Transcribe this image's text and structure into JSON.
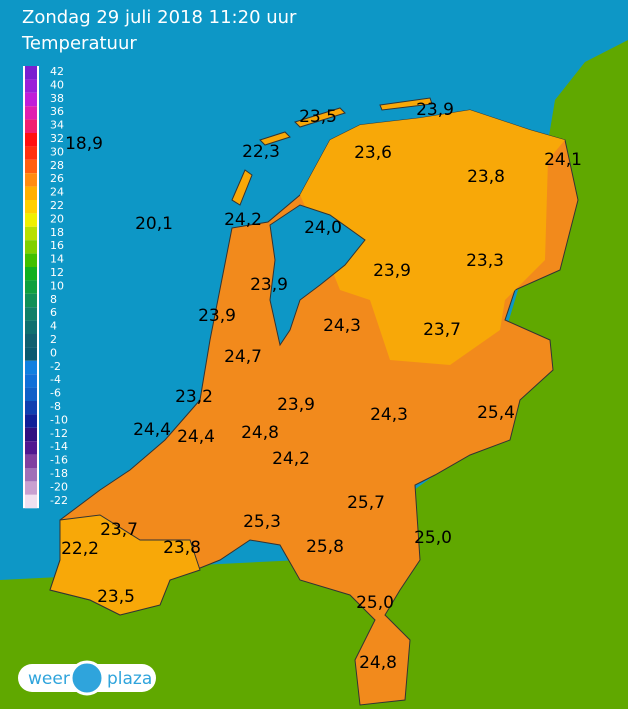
{
  "header": {
    "title": "Zondag 29 juli 2018 11:20 uur",
    "subtitle": "Temperatuur"
  },
  "legend": {
    "ticks": [
      42,
      40,
      38,
      36,
      34,
      32,
      30,
      28,
      26,
      24,
      22,
      20,
      18,
      16,
      14,
      12,
      10,
      8,
      6,
      4,
      2,
      0,
      -2,
      -4,
      -6,
      -8,
      -10,
      -12,
      -14,
      -16,
      -18,
      -20,
      -22
    ],
    "colors": [
      "#7a1fd0",
      "#9a1fd8",
      "#c01fd8",
      "#e01fb0",
      "#f01f70",
      "#ff1010",
      "#ff3010",
      "#ff6010",
      "#ff8c10",
      "#ffb000",
      "#ffd000",
      "#f0f000",
      "#b8e000",
      "#80d000",
      "#40c000",
      "#10b020",
      "#10a040",
      "#109058",
      "#108068",
      "#107070",
      "#106070",
      "#0a5a70",
      "#1080e0",
      "#1070d8",
      "#1060c8",
      "#1040b0",
      "#102098",
      "#301080",
      "#501890",
      "#8040a0",
      "#a070b8",
      "#c8a0d0",
      "#f0e0f0"
    ]
  },
  "stations": [
    "18,9",
    "23,5",
    "23,9",
    "22,3",
    "23,6",
    "24,1",
    "23,8",
    "20,1",
    "24,2",
    "24,0",
    "23,9",
    "23,3",
    "23,9",
    "23,9",
    "24,3",
    "23,7",
    "24,7",
    "23,2",
    "23,9",
    "24,3",
    "25,4",
    "24,4",
    "24,4",
    "24,8",
    "24,2",
    "25,7",
    "23,7",
    "25,3",
    "25,0",
    "22,2",
    "23,8",
    "25,8",
    "23,5",
    "25,0",
    "24,8"
  ],
  "logo": {
    "left": "weer",
    "right": "plaza"
  }
}
